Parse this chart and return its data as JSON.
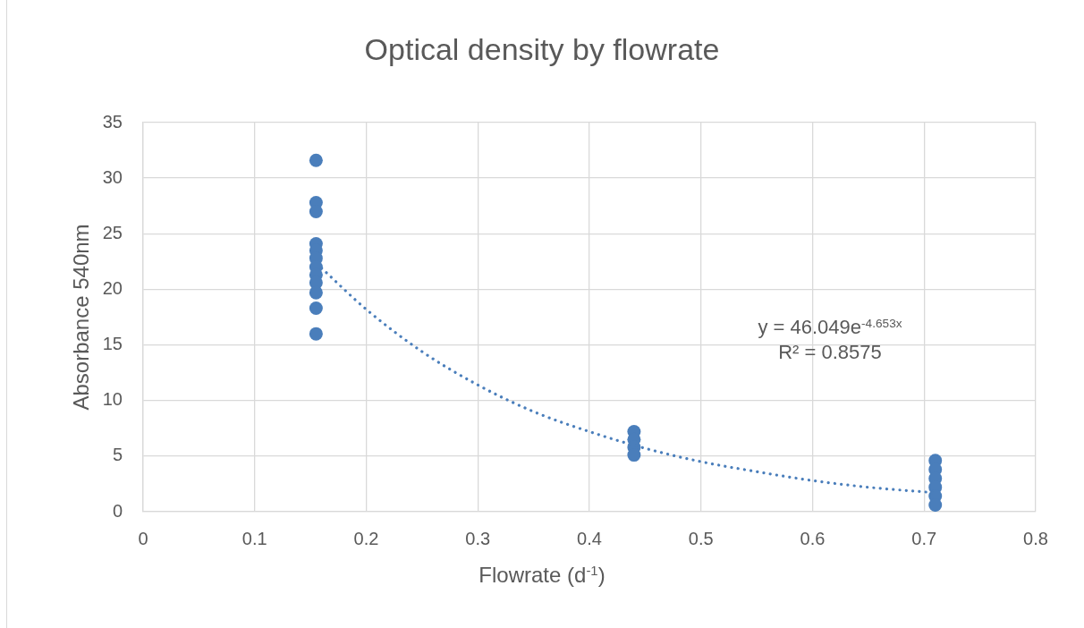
{
  "chart_data": {
    "type": "scatter",
    "title": "Optical density by flowrate",
    "xlabel": "Flowrate (d$^{-1}$)",
    "ylabel": "Absorbance 540nm",
    "xlim": [
      0,
      0.8
    ],
    "xticks": [
      0,
      0.1,
      0.2,
      0.3,
      0.4,
      0.5,
      0.6,
      0.7,
      0.8
    ],
    "ylim": [
      0,
      35
    ],
    "yticks": [
      0,
      5,
      10,
      15,
      20,
      25,
      30,
      35
    ],
    "grid": true,
    "legend": false,
    "marker": "circle",
    "series": [
      {
        "type": "scatter",
        "color": "#4a7ebb",
        "x": [
          0.155,
          0.155,
          0.155,
          0.155,
          0.155,
          0.155,
          0.155,
          0.155,
          0.155,
          0.155,
          0.155,
          0.155,
          0.44,
          0.44,
          0.44,
          0.44,
          0.71,
          0.71,
          0.71,
          0.71,
          0.71,
          0.71
        ],
        "values": [
          31.6,
          27.8,
          27.0,
          24.1,
          23.5,
          22.8,
          22.0,
          21.3,
          20.6,
          19.7,
          18.3,
          16.0,
          7.2,
          6.5,
          5.8,
          5.1,
          4.6,
          3.8,
          3.0,
          2.2,
          1.4,
          0.6
        ]
      },
      {
        "type": "line",
        "color": "#4a7ebb",
        "line_style": "dotted",
        "marker": "none",
        "x": [
          0.16,
          0.2,
          0.25,
          0.3,
          0.35,
          0.4,
          0.45,
          0.5,
          0.55,
          0.6,
          0.65,
          0.71
        ],
        "values": [
          21.9,
          18.2,
          14.4,
          11.4,
          9.0,
          7.2,
          5.7,
          4.5,
          3.6,
          2.8,
          2.2,
          1.7
        ]
      }
    ],
    "annotations": [
      "y = 46.049e$^{-4.653x}$",
      "R² = 0.8575"
    ]
  }
}
